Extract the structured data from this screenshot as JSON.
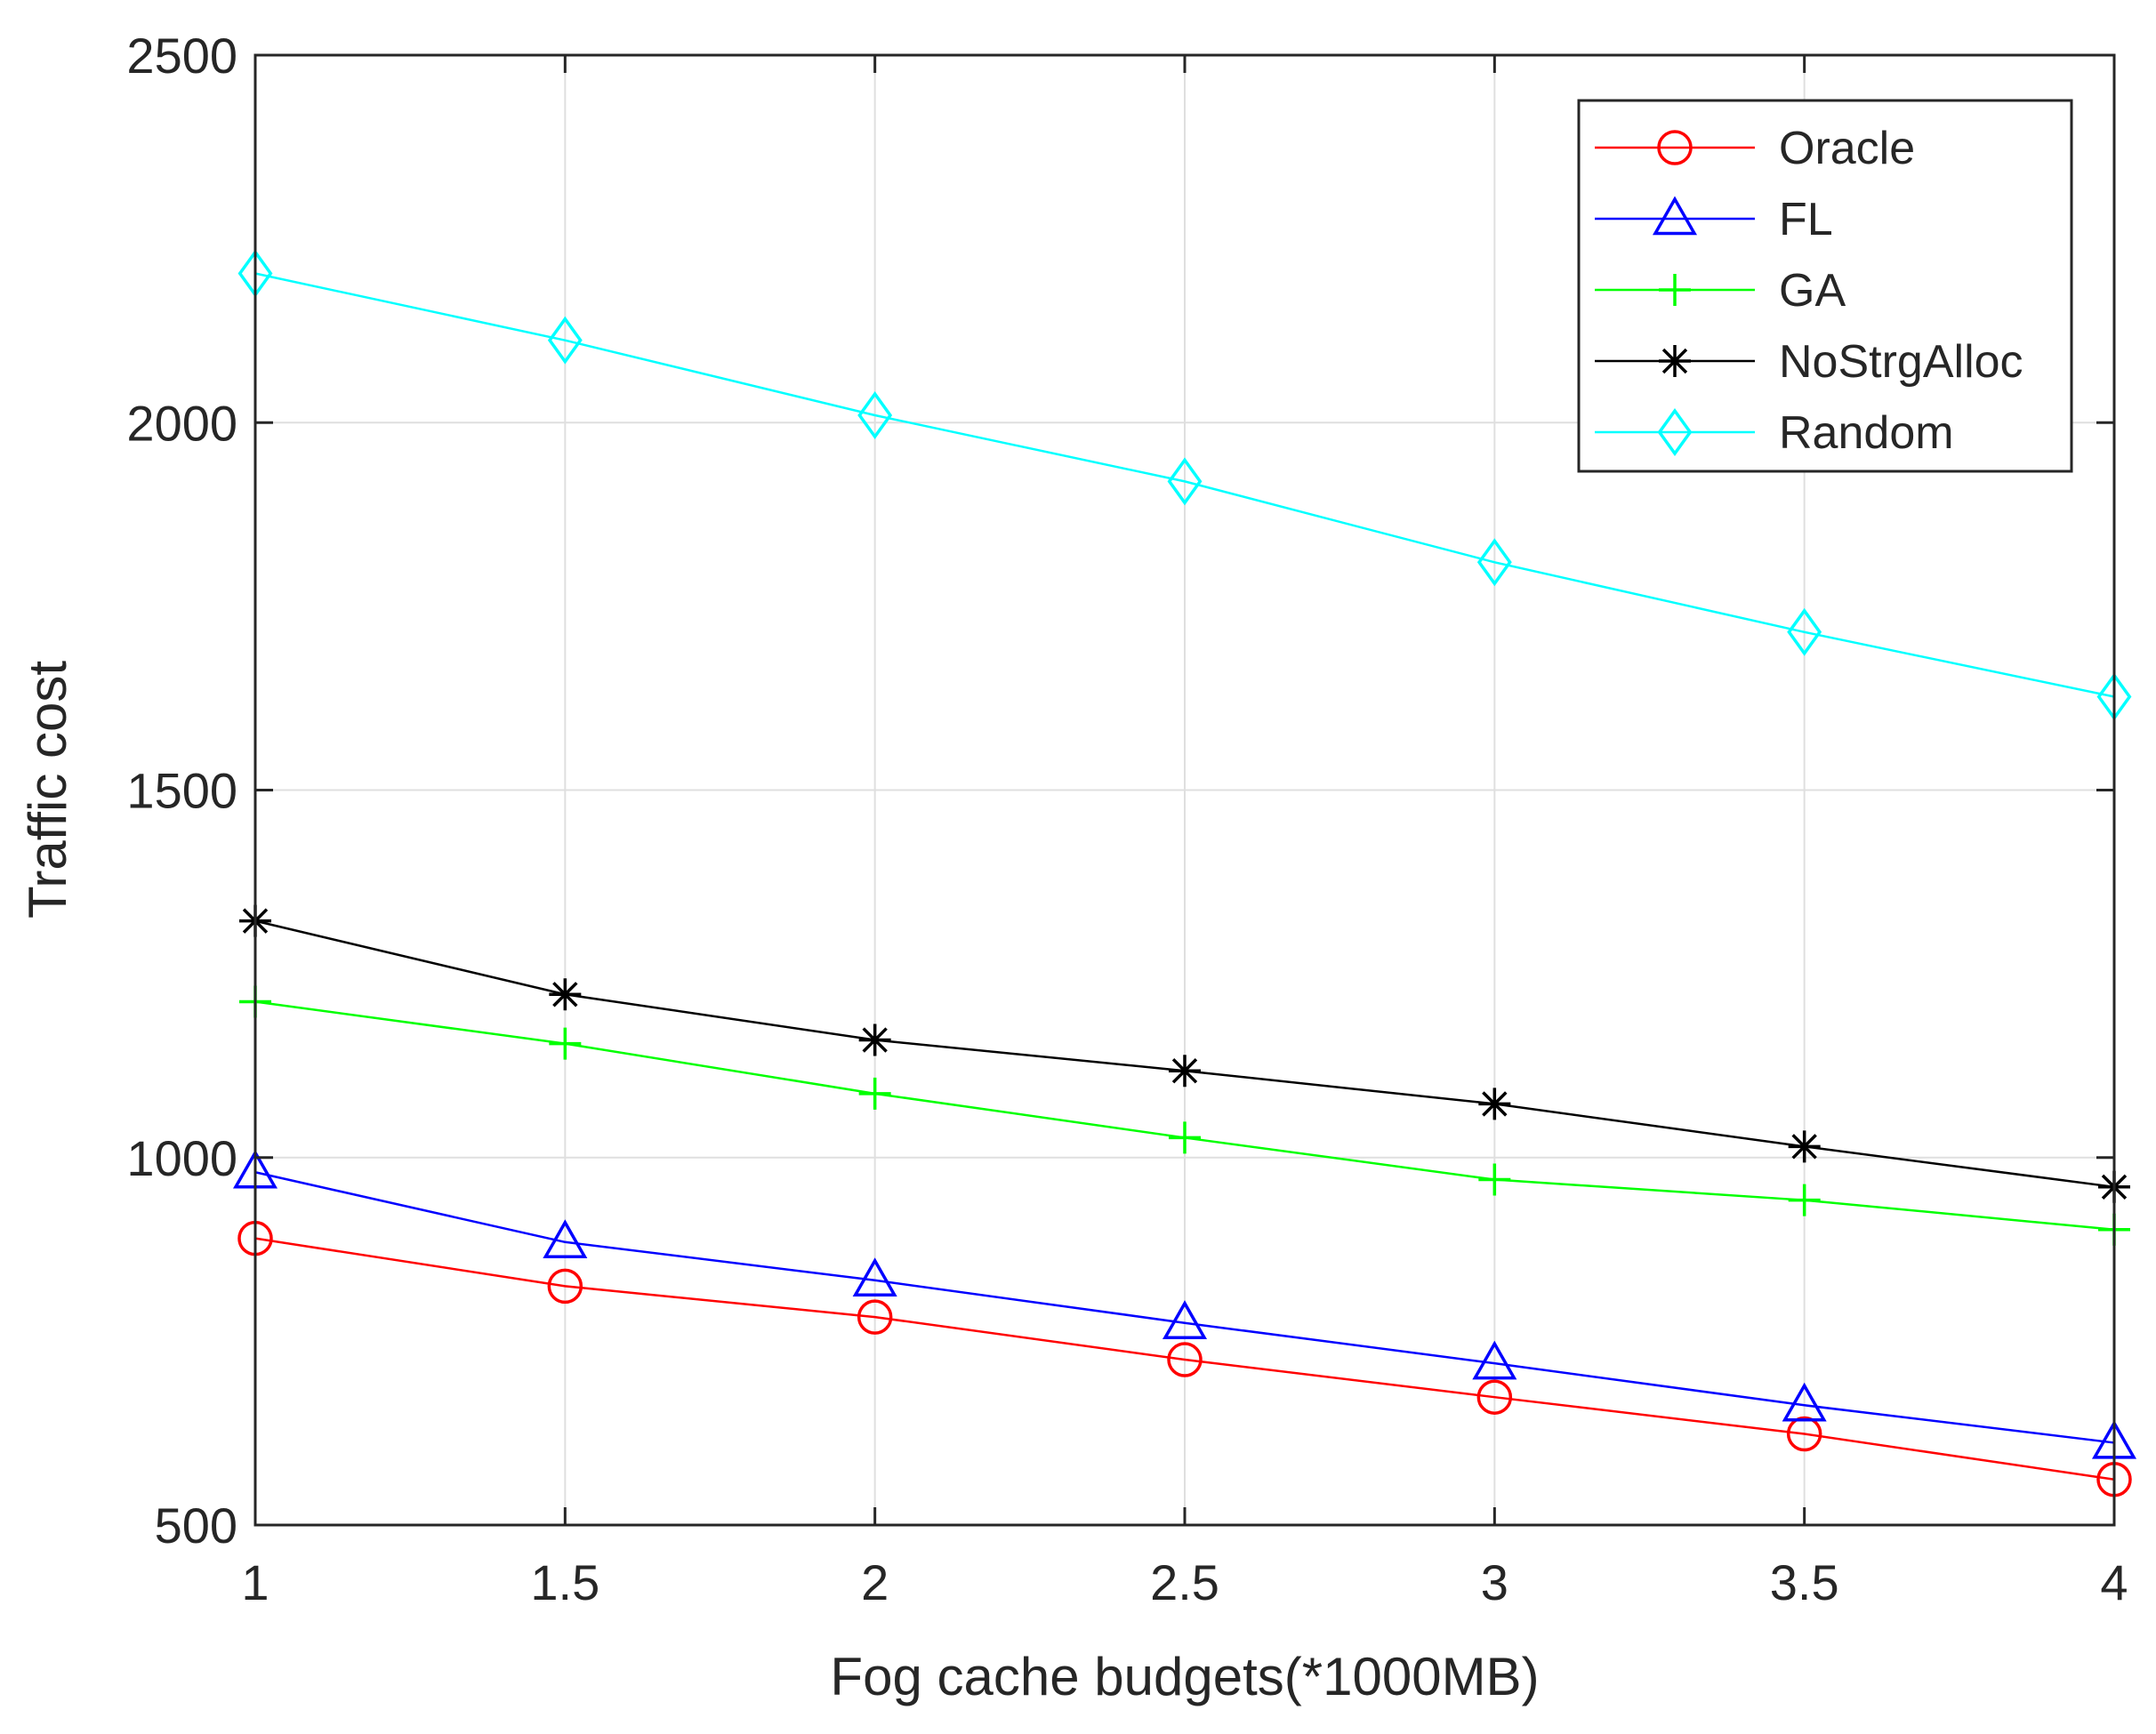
{
  "chart_data": {
    "type": "line",
    "title": "",
    "xlabel": "Fog cache budgets(*1000MB)",
    "ylabel": "Traffic cost",
    "xlim": [
      1,
      4
    ],
    "ylim": [
      500,
      2500
    ],
    "xticks": [
      1,
      1.5,
      2,
      2.5,
      3,
      3.5,
      4
    ],
    "yticks": [
      500,
      1000,
      1500,
      2000,
      2500
    ],
    "xtick_labels": [
      "1",
      "1.5",
      "2",
      "2.5",
      "3",
      "3.5",
      "4"
    ],
    "ytick_labels": [
      "500",
      "1000",
      "1500",
      "2000",
      "2500"
    ],
    "grid": true,
    "legend_position": "top-right",
    "x": [
      1,
      1.5,
      2,
      2.5,
      3,
      3.5,
      4
    ],
    "series": [
      {
        "name": "Oracle",
        "color": "#ff0000",
        "marker": "circle",
        "values": [
          890,
          825,
          783,
          725,
          674,
          624,
          562
        ]
      },
      {
        "name": "FL",
        "color": "#0000ff",
        "marker": "triangle",
        "values": [
          980,
          885,
          833,
          775,
          720,
          663,
          612
        ]
      },
      {
        "name": "GA",
        "color": "#00ff00",
        "marker": "plus",
        "values": [
          1212,
          1155,
          1087,
          1027,
          970,
          942,
          902
        ]
      },
      {
        "name": "NoStrgAlloc",
        "color": "#000000",
        "marker": "asterisk",
        "values": [
          1322,
          1222,
          1160,
          1118,
          1073,
          1015,
          960
        ]
      },
      {
        "name": "Random",
        "color": "#00ffff",
        "marker": "diamond",
        "values": [
          2203,
          2112,
          2010,
          1920,
          1810,
          1715,
          1627
        ]
      }
    ]
  }
}
